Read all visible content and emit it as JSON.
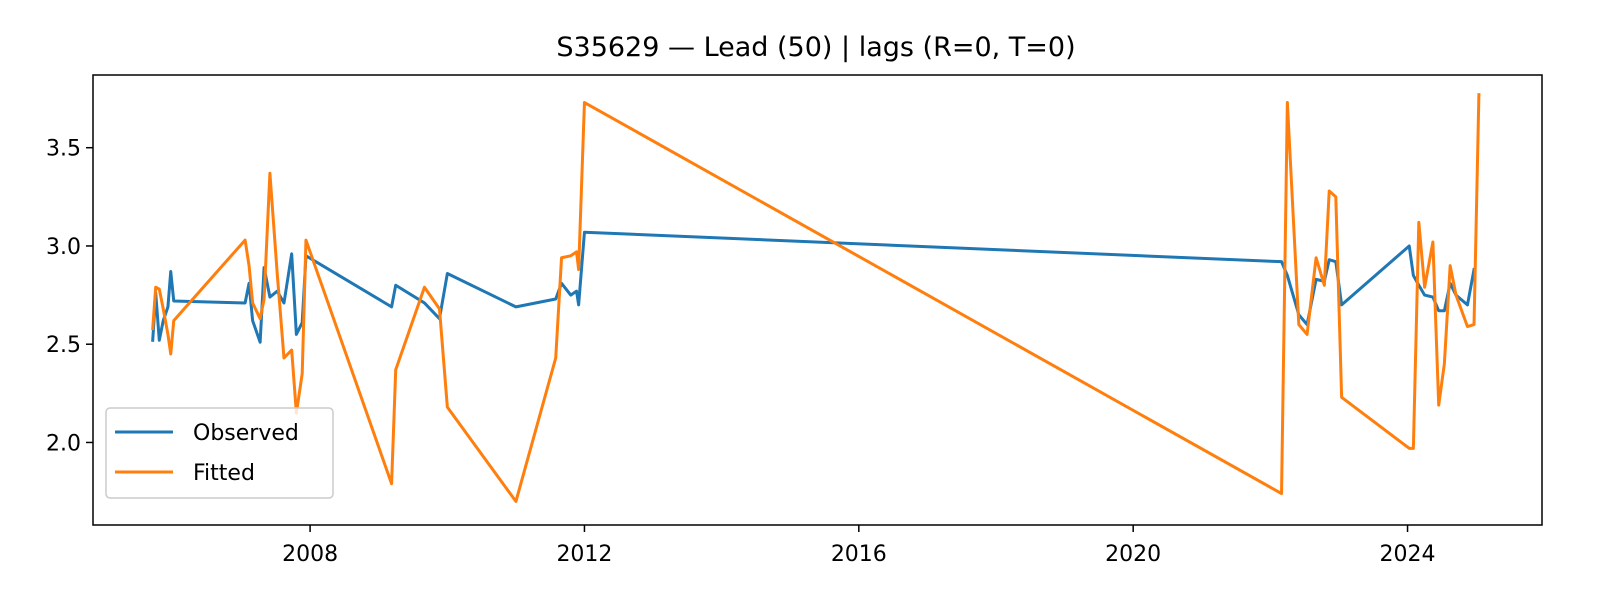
{
  "chart_data": {
    "type": "line",
    "title": "S35629 — Lead (50) | lags (R=0, T=0)",
    "xlabel": "",
    "ylabel": "",
    "xlim": [
      "2004-11-01",
      "2025-12-17"
    ],
    "ylim": [
      1.58,
      3.87
    ],
    "x_ticks": [
      "2008-01-01",
      "2012-01-01",
      "2016-01-01",
      "2020-01-01",
      "2024-01-01"
    ],
    "x_tick_labels": [
      "2008",
      "2012",
      "2016",
      "2020",
      "2024"
    ],
    "y_ticks": [
      2.0,
      2.5,
      3.0,
      3.5
    ],
    "y_tick_labels": [
      "2.0",
      "2.5",
      "3.0",
      "3.5"
    ],
    "grid": false,
    "legend_position": "lower-left",
    "series": [
      {
        "name": "Observed",
        "color": "#1f77b4",
        "points": [
          [
            "2005-09-15",
            2.52
          ],
          [
            "2005-10-01",
            2.76
          ],
          [
            "2005-10-20",
            2.52
          ],
          [
            "2005-11-10",
            2.62
          ],
          [
            "2005-12-05",
            2.69
          ],
          [
            "2005-12-20",
            2.87
          ],
          [
            "2006-01-05",
            2.72
          ],
          [
            "2007-01-20",
            2.71
          ],
          [
            "2007-02-10",
            2.81
          ],
          [
            "2007-03-01",
            2.62
          ],
          [
            "2007-04-10",
            2.51
          ],
          [
            "2007-05-01",
            2.89
          ],
          [
            "2007-06-01",
            2.74
          ],
          [
            "2007-07-10",
            2.77
          ],
          [
            "2007-08-15",
            2.71
          ],
          [
            "2007-09-25",
            2.96
          ],
          [
            "2007-10-20",
            2.55
          ],
          [
            "2007-11-20",
            2.61
          ],
          [
            "2007-12-10",
            2.95
          ],
          [
            "2009-03-10",
            2.69
          ],
          [
            "2009-04-01",
            2.8
          ],
          [
            "2009-09-01",
            2.71
          ],
          [
            "2009-11-20",
            2.63
          ],
          [
            "2010-01-01",
            2.86
          ],
          [
            "2011-01-01",
            2.69
          ],
          [
            "2011-08-01",
            2.73
          ],
          [
            "2011-09-01",
            2.81
          ],
          [
            "2011-10-20",
            2.75
          ],
          [
            "2011-11-20",
            2.77
          ],
          [
            "2011-12-01",
            2.7
          ],
          [
            "2012-01-01",
            3.07
          ],
          [
            "2022-03-01",
            2.92
          ],
          [
            "2022-04-01",
            2.85
          ],
          [
            "2022-06-01",
            2.65
          ],
          [
            "2022-07-15",
            2.6
          ],
          [
            "2022-09-01",
            2.83
          ],
          [
            "2022-10-15",
            2.82
          ],
          [
            "2022-11-10",
            2.93
          ],
          [
            "2022-12-15",
            2.92
          ],
          [
            "2023-01-15",
            2.7
          ],
          [
            "2024-01-10",
            3.0
          ],
          [
            "2024-02-01",
            2.85
          ],
          [
            "2024-03-01",
            2.8
          ],
          [
            "2024-04-01",
            2.75
          ],
          [
            "2024-05-15",
            2.74
          ],
          [
            "2024-06-15",
            2.67
          ],
          [
            "2024-07-15",
            2.67
          ],
          [
            "2024-08-15",
            2.81
          ],
          [
            "2024-09-15",
            2.75
          ],
          [
            "2024-11-15",
            2.7
          ],
          [
            "2024-12-20",
            2.88
          ]
        ]
      },
      {
        "name": "Fitted",
        "color": "#ff7f0e",
        "points": [
          [
            "2005-09-15",
            2.58
          ],
          [
            "2005-10-01",
            2.79
          ],
          [
            "2005-10-20",
            2.78
          ],
          [
            "2005-11-10",
            2.68
          ],
          [
            "2005-12-05",
            2.55
          ],
          [
            "2005-12-20",
            2.45
          ],
          [
            "2006-01-05",
            2.62
          ],
          [
            "2007-01-20",
            3.03
          ],
          [
            "2007-02-10",
            2.9
          ],
          [
            "2007-03-01",
            2.71
          ],
          [
            "2007-04-10",
            2.63
          ],
          [
            "2007-05-01",
            2.73
          ],
          [
            "2007-06-01",
            3.37
          ],
          [
            "2007-07-10",
            2.86
          ],
          [
            "2007-08-15",
            2.43
          ],
          [
            "2007-09-25",
            2.47
          ],
          [
            "2007-10-20",
            2.15
          ],
          [
            "2007-11-20",
            2.35
          ],
          [
            "2007-12-10",
            3.03
          ],
          [
            "2009-03-10",
            1.79
          ],
          [
            "2009-04-01",
            2.37
          ],
          [
            "2009-09-01",
            2.79
          ],
          [
            "2009-11-20",
            2.68
          ],
          [
            "2010-01-01",
            2.18
          ],
          [
            "2011-01-01",
            1.7
          ],
          [
            "2011-08-01",
            2.43
          ],
          [
            "2011-09-01",
            2.94
          ],
          [
            "2011-10-20",
            2.95
          ],
          [
            "2011-11-20",
            2.97
          ],
          [
            "2011-12-01",
            2.88
          ],
          [
            "2012-01-01",
            3.73
          ],
          [
            "2022-03-01",
            1.74
          ],
          [
            "2022-04-01",
            3.73
          ],
          [
            "2022-06-01",
            2.6
          ],
          [
            "2022-07-15",
            2.55
          ],
          [
            "2022-09-01",
            2.94
          ],
          [
            "2022-10-15",
            2.8
          ],
          [
            "2022-11-10",
            3.28
          ],
          [
            "2022-12-15",
            3.25
          ],
          [
            "2023-01-15",
            2.23
          ],
          [
            "2024-01-10",
            1.97
          ],
          [
            "2024-02-01",
            1.97
          ],
          [
            "2024-03-01",
            3.12
          ],
          [
            "2024-04-01",
            2.79
          ],
          [
            "2024-05-15",
            3.02
          ],
          [
            "2024-06-15",
            2.19
          ],
          [
            "2024-07-15",
            2.4
          ],
          [
            "2024-08-15",
            2.9
          ],
          [
            "2024-09-15",
            2.75
          ],
          [
            "2024-11-15",
            2.59
          ],
          [
            "2024-12-20",
            2.6
          ],
          [
            "2025-01-15",
            3.77
          ]
        ]
      }
    ]
  }
}
